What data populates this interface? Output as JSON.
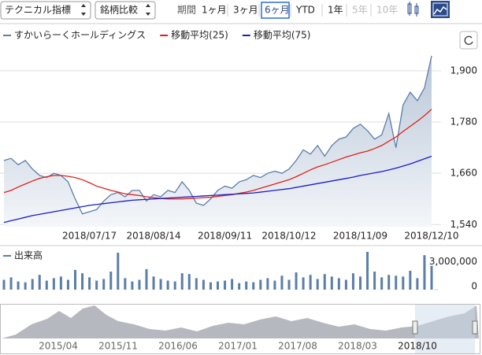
{
  "toolbar": {
    "indicator": "テクニカル指標",
    "compare": "銘柄比較",
    "period_label": "期間",
    "periods": [
      {
        "label": "1ヶ月"
      },
      {
        "label": "3ヶ月"
      },
      {
        "label": "6ヶ月",
        "selected": true
      },
      {
        "label": "YTD"
      },
      {
        "label": "1年"
      },
      {
        "label": "5年",
        "disabled": true
      },
      {
        "label": "10年",
        "disabled": true
      }
    ]
  },
  "chart_data": [
    {
      "type": "line",
      "categories": [
        null,
        null,
        null,
        null,
        null,
        null,
        null,
        null,
        null,
        null,
        null,
        null,
        "2018/07/17",
        null,
        null,
        null,
        null,
        null,
        null,
        null,
        null,
        "2018/08/14",
        null,
        null,
        null,
        null,
        null,
        null,
        null,
        null,
        null,
        "2018/09/11",
        null,
        null,
        null,
        null,
        null,
        null,
        null,
        null,
        "2018/10/12",
        null,
        null,
        null,
        null,
        null,
        null,
        null,
        null,
        null,
        "2018/11/09",
        null,
        null,
        null,
        null,
        null,
        null,
        null,
        null,
        null,
        "2018/12/10"
      ],
      "series": [
        {
          "name": "すかいらーくホールディングス",
          "color": "#5b7ea8",
          "values": [
            1690,
            1695,
            1680,
            1690,
            1670,
            1655,
            1650,
            1660,
            1655,
            1640,
            1600,
            1565,
            1570,
            1575,
            1595,
            1610,
            1615,
            1605,
            1620,
            1620,
            1595,
            1610,
            1605,
            1620,
            1615,
            1640,
            1620,
            1590,
            1585,
            1600,
            1620,
            1630,
            1625,
            1640,
            1645,
            1655,
            1650,
            1660,
            1665,
            1660,
            1670,
            1690,
            1715,
            1705,
            1725,
            1700,
            1725,
            1740,
            1745,
            1765,
            1775,
            1760,
            1740,
            1750,
            1800,
            1720,
            1820,
            1850,
            1830,
            1860,
            1935
          ]
        },
        {
          "name": "移動平均(25)",
          "color": "#e0201c",
          "values": [
            1615,
            1620,
            1628,
            1635,
            1642,
            1648,
            1652,
            1655,
            1655,
            1653,
            1650,
            1645,
            1638,
            1630,
            1625,
            1620,
            1616,
            1612,
            1610,
            1608,
            1605,
            1603,
            1601,
            1600,
            1600,
            1600,
            1601,
            1602,
            1603,
            1604,
            1606,
            1608,
            1610,
            1613,
            1616,
            1620,
            1625,
            1630,
            1635,
            1640,
            1645,
            1652,
            1660,
            1668,
            1675,
            1680,
            1686,
            1692,
            1698,
            1703,
            1708,
            1712,
            1718,
            1725,
            1735,
            1745,
            1758,
            1770,
            1782,
            1795,
            1810
          ]
        },
        {
          "name": "移動平均(75)",
          "color": "#1c1cc8",
          "values": [
            1545,
            1549,
            1553,
            1557,
            1561,
            1564,
            1567,
            1570,
            1573,
            1576,
            1579,
            1582,
            1585,
            1587,
            1589,
            1591,
            1593,
            1595,
            1597,
            1598,
            1599,
            1600,
            1601,
            1602,
            1603,
            1604,
            1605,
            1606,
            1607,
            1608,
            1609,
            1610,
            1611,
            1612,
            1613,
            1614,
            1616,
            1618,
            1620,
            1622,
            1624,
            1627,
            1630,
            1633,
            1636,
            1639,
            1642,
            1645,
            1648,
            1651,
            1655,
            1658,
            1661,
            1664,
            1668,
            1672,
            1677,
            1682,
            1688,
            1694,
            1700
          ]
        }
      ],
      "ylim": [
        1535,
        1992
      ],
      "yticks": [
        {
          "value": 1540,
          "label": "1,540"
        },
        {
          "value": 1660,
          "label": "1,660"
        },
        {
          "value": 1780,
          "label": "1,780"
        },
        {
          "value": 1900,
          "label": "1,900"
        }
      ],
      "grid": true
    },
    {
      "type": "bar",
      "title": "出来高",
      "color": "#5b7ea8",
      "values": [
        1200000,
        1500000,
        1000000,
        900000,
        1300000,
        1800000,
        1100000,
        1400000,
        1600000,
        1200000,
        2400000,
        2000000,
        1500000,
        1100000,
        1300000,
        2200000,
        4500000,
        1400000,
        1000000,
        1200000,
        2500000,
        1600000,
        1300000,
        1100000,
        1000000,
        2000000,
        1900000,
        1400000,
        1200000,
        900000,
        1000000,
        1100000,
        1300000,
        800000,
        1000000,
        900000,
        1200000,
        1400000,
        1100000,
        1700000,
        1200000,
        2100000,
        1500000,
        1800000,
        1300000,
        1900000,
        1600000,
        1400000,
        1200000,
        2000000,
        1600000,
        4600000,
        2200000,
        1500000,
        1800000,
        1700000,
        1600000,
        2300000,
        1400000,
        4200000,
        2900000
      ],
      "ylim": [
        0,
        4600000
      ],
      "yticks": [
        0,
        {
          "value": 3000000,
          "label": "3,000,000"
        }
      ]
    }
  ],
  "navigator": {
    "labels": [
      "2015/04",
      "2015/11",
      "2016/06",
      "2017/01",
      "2017/08",
      "2018/03",
      "2018/10"
    ]
  }
}
